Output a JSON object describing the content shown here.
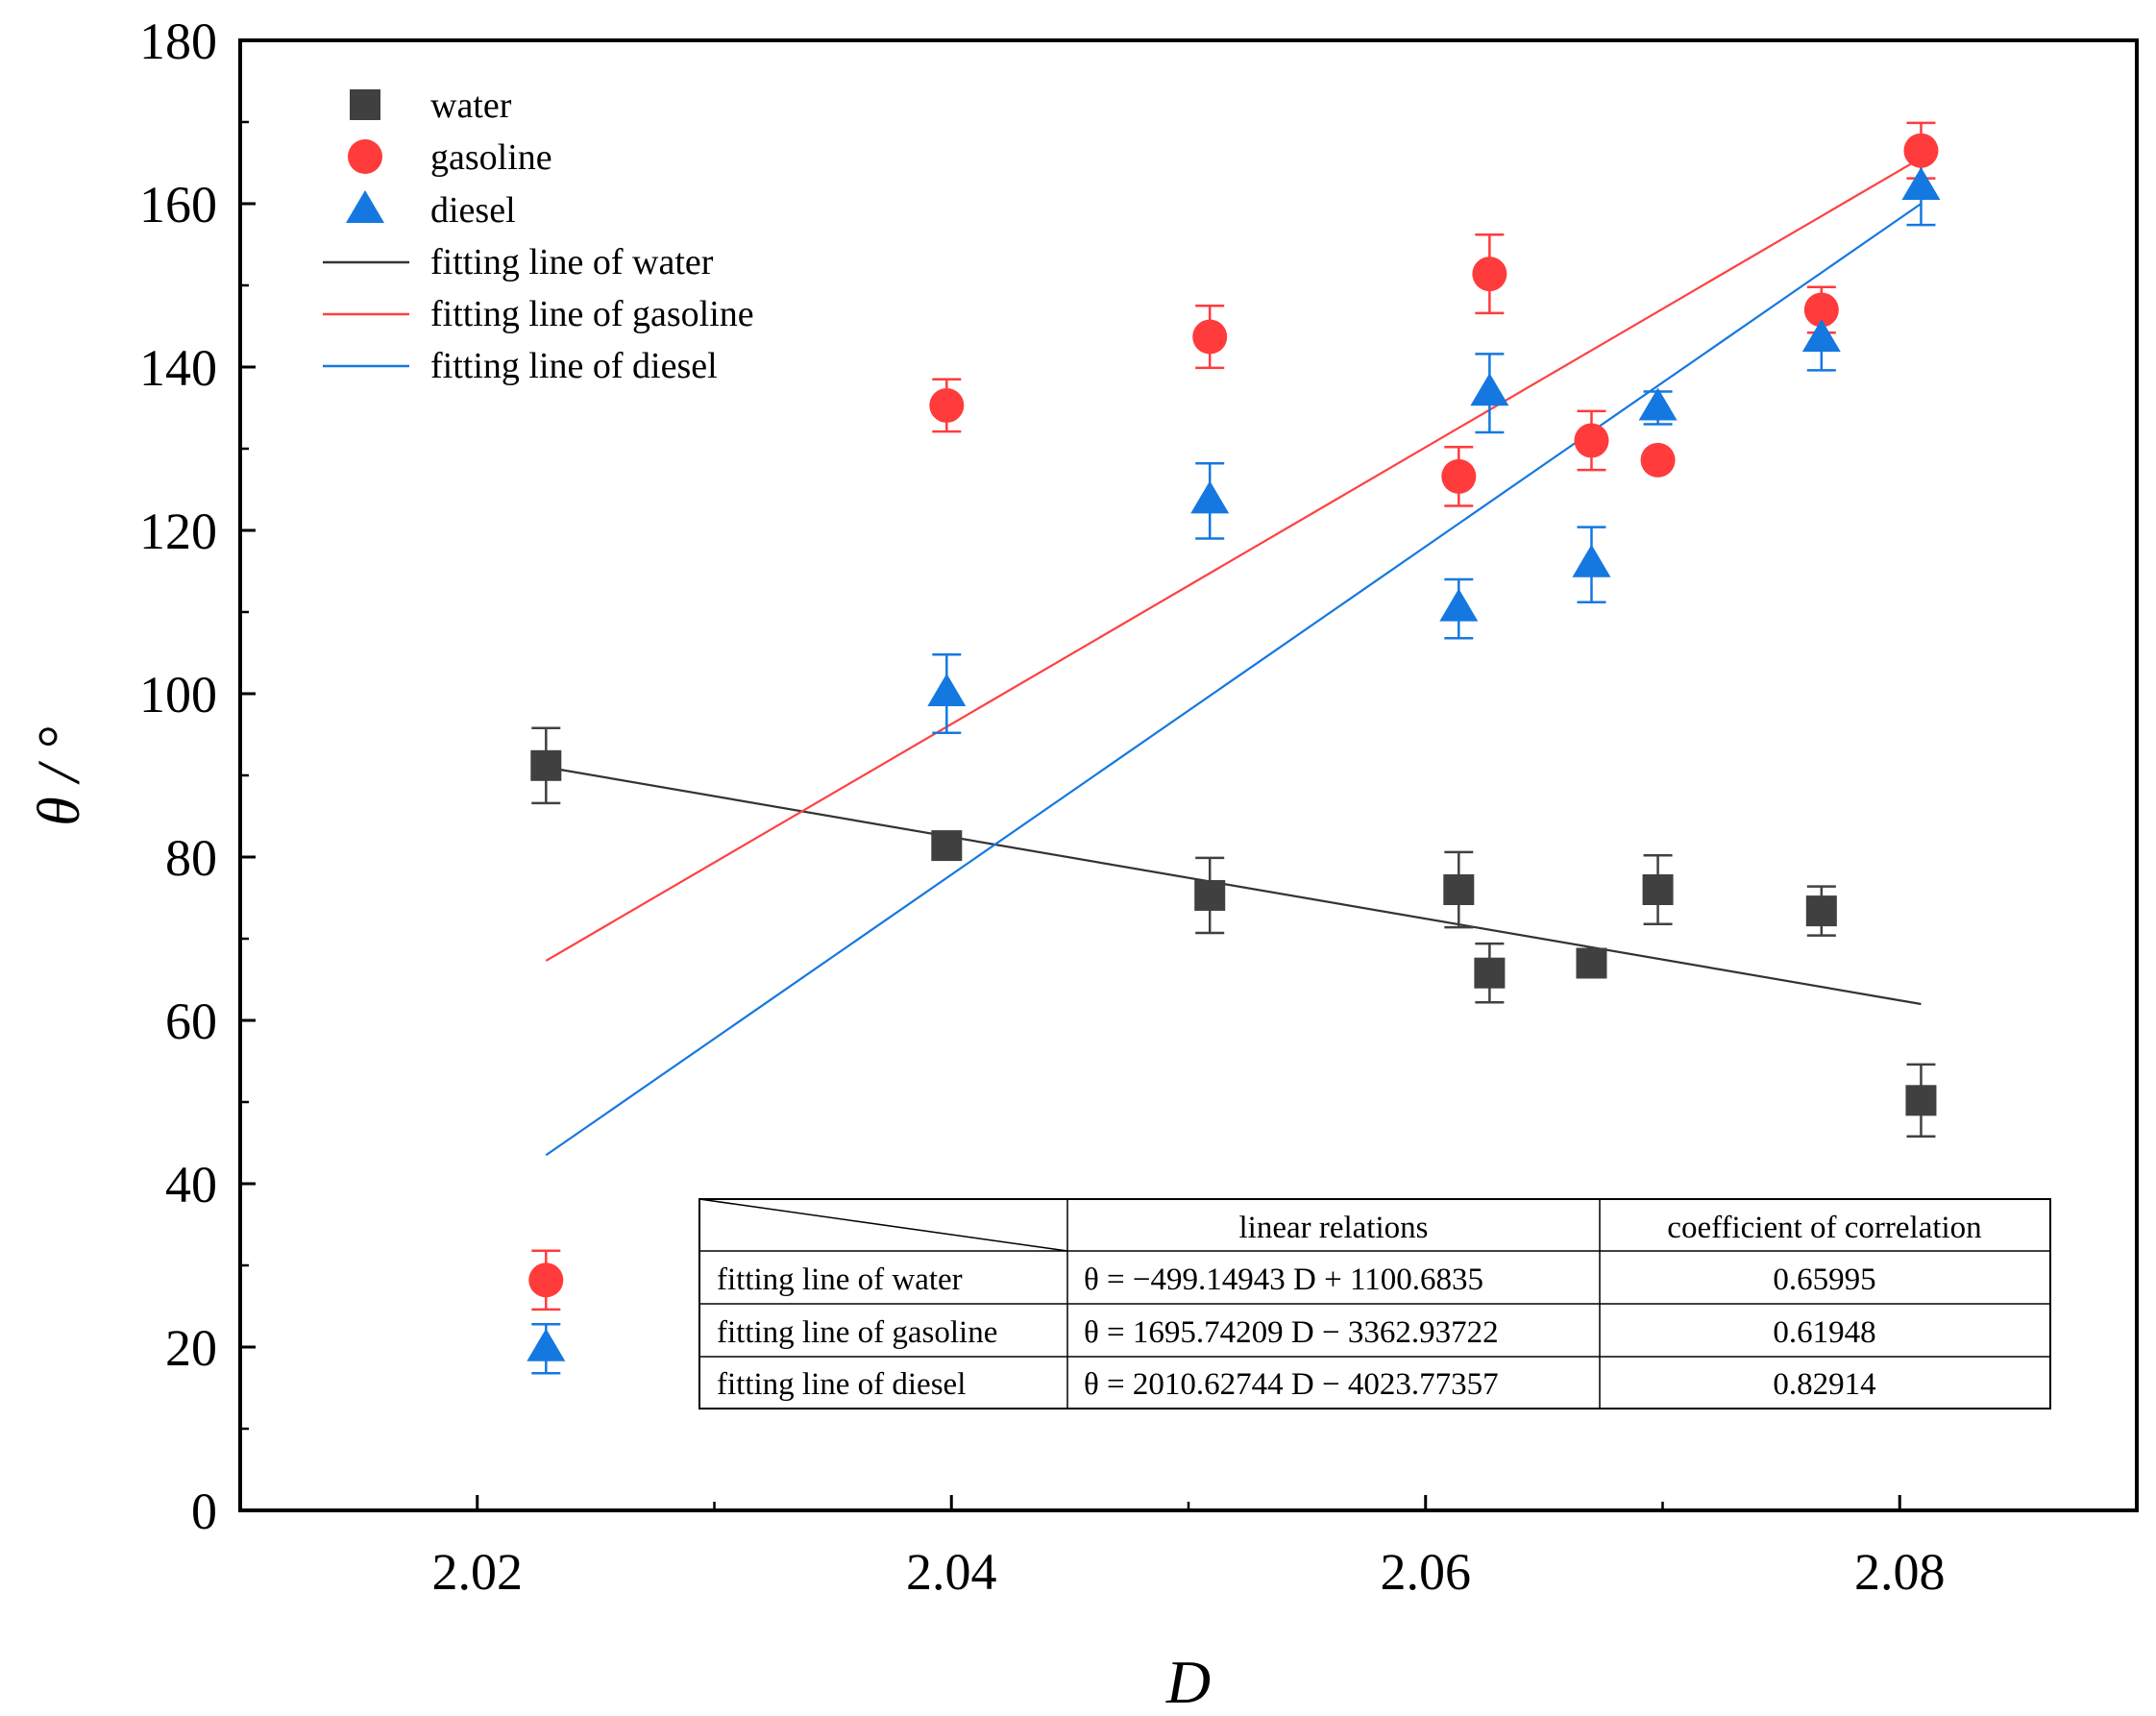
{
  "chart_data": {
    "type": "scatter",
    "title": "",
    "xlabel": "D",
    "ylabel": "θ / °",
    "xlim": [
      2.01,
      2.09
    ],
    "ylim": [
      0,
      180
    ],
    "x_ticks": [
      "2.02",
      "2.04",
      "2.06",
      "2.08"
    ],
    "y_ticks": [
      "0",
      "20",
      "40",
      "60",
      "80",
      "100",
      "120",
      "140",
      "160",
      "180"
    ],
    "x_tick_values": [
      2.02,
      2.04,
      2.06,
      2.08
    ],
    "y_tick_values": [
      0,
      20,
      40,
      60,
      80,
      100,
      120,
      140,
      160,
      180
    ],
    "x_minor_values": [
      2.01,
      2.03,
      2.05,
      2.07,
      2.09
    ],
    "y_minor_values": [
      10,
      30,
      50,
      70,
      90,
      110,
      130,
      150,
      170
    ],
    "grid": false,
    "legend_position": "top-left",
    "series": [
      {
        "name": "water",
        "marker": "square",
        "color": "#404040",
        "points": [
          {
            "x": 2.0229,
            "y": 91.2,
            "err": 4.6
          },
          {
            "x": 2.0398,
            "y": 81.4,
            "err": 0
          },
          {
            "x": 2.0509,
            "y": 75.3,
            "err": 4.6
          },
          {
            "x": 2.0614,
            "y": 76.0,
            "err": 4.6
          },
          {
            "x": 2.0627,
            "y": 65.8,
            "err": 3.6
          },
          {
            "x": 2.067,
            "y": 67.0,
            "err": 0
          },
          {
            "x": 2.0698,
            "y": 76.0,
            "err": 4.2
          },
          {
            "x": 2.0767,
            "y": 73.4,
            "err": 3.0
          },
          {
            "x": 2.0809,
            "y": 50.2,
            "err": 4.4
          }
        ]
      },
      {
        "name": "gasoline",
        "marker": "circle",
        "color": "#ff3b3b",
        "points": [
          {
            "x": 2.0229,
            "y": 28.2,
            "err": 3.6
          },
          {
            "x": 2.0398,
            "y": 135.3,
            "err": 3.2
          },
          {
            "x": 2.0509,
            "y": 143.7,
            "err": 3.8
          },
          {
            "x": 2.0614,
            "y": 126.6,
            "err": 3.6
          },
          {
            "x": 2.0627,
            "y": 151.4,
            "err": 4.8
          },
          {
            "x": 2.067,
            "y": 131.0,
            "err": 3.6
          },
          {
            "x": 2.0698,
            "y": 128.6,
            "err": 0
          },
          {
            "x": 2.0767,
            "y": 147.0,
            "err": 2.8
          },
          {
            "x": 2.0809,
            "y": 166.5,
            "err": 3.4
          }
        ]
      },
      {
        "name": "diesel",
        "marker": "triangle",
        "color": "#1478e0",
        "points": [
          {
            "x": 2.0229,
            "y": 19.8,
            "err": 3.0
          },
          {
            "x": 2.0398,
            "y": 100.0,
            "err": 4.8
          },
          {
            "x": 2.0509,
            "y": 123.6,
            "err": 4.6
          },
          {
            "x": 2.0614,
            "y": 110.4,
            "err": 3.6
          },
          {
            "x": 2.0627,
            "y": 136.8,
            "err": 4.8
          },
          {
            "x": 2.067,
            "y": 115.8,
            "err": 4.6
          },
          {
            "x": 2.0698,
            "y": 135.0,
            "err": 2.0
          },
          {
            "x": 2.0767,
            "y": 143.4,
            "err": 3.8
          },
          {
            "x": 2.0809,
            "y": 162.0,
            "err": 4.6
          }
        ]
      }
    ],
    "fit_lines": [
      {
        "name": "fitting line of water",
        "color": "#333333",
        "x": [
          2.0229,
          2.0809
        ],
        "y": [
          91.0,
          62.0
        ]
      },
      {
        "name": "fitting line of gasoline",
        "color": "#ff4040",
        "x": [
          2.0229,
          2.0809
        ],
        "y": [
          67.3,
          165.6
        ]
      },
      {
        "name": "fitting line of diesel",
        "color": "#1478e0",
        "x": [
          2.0229,
          2.0809
        ],
        "y": [
          43.5,
          160.0
        ]
      }
    ],
    "table": {
      "headers": [
        "",
        "linear relations",
        "coefficient of correlation"
      ],
      "rows": [
        [
          "fitting line of water",
          "θ = −499.14943 D + 1100.6835",
          "0.65995"
        ],
        [
          "fitting line of gasoline",
          "θ = 1695.74209 D − 3362.93722",
          "0.61948"
        ],
        [
          "fitting line of diesel",
          "θ = 2010.62744 D − 4023.77357",
          "0.82914"
        ]
      ]
    }
  }
}
